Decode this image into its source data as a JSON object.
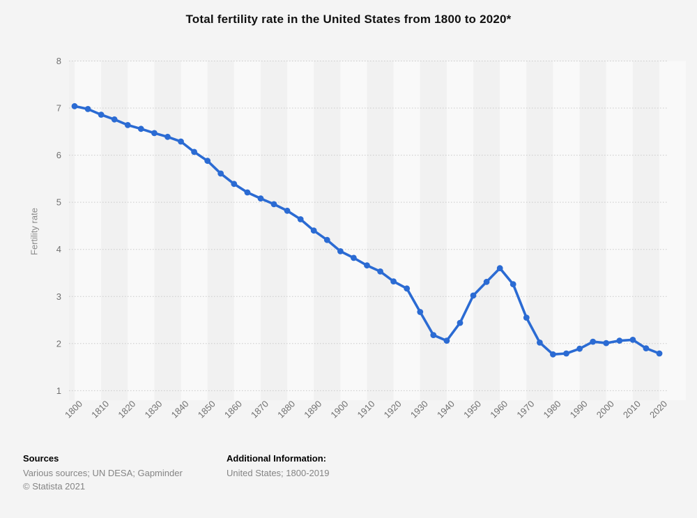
{
  "title": "Total fertility rate in the United States from 1800 to 2020*",
  "colors": {
    "background": "#f4f4f4",
    "band_light": "#f9f9f9",
    "band_dark": "#f1f1f1",
    "gridline": "#c9c9c9",
    "line": "#2b6bd3",
    "axis_text": "#707070",
    "title_text": "#111111"
  },
  "chart_data": {
    "type": "line",
    "title": "Total fertility rate in the United States from 1800 to 2020*",
    "xlabel": "",
    "ylabel": "Fertility rate",
    "ylim": [
      1,
      8
    ],
    "yticks": [
      1,
      2,
      3,
      4,
      5,
      6,
      7,
      8
    ],
    "xticks": [
      1800,
      1810,
      1820,
      1830,
      1840,
      1850,
      1860,
      1870,
      1880,
      1890,
      1900,
      1910,
      1920,
      1930,
      1940,
      1950,
      1960,
      1970,
      1980,
      1990,
      2000,
      2010,
      2020
    ],
    "grid": "horizontal-dotted",
    "legend": "none",
    "marker": "circle",
    "x": [
      1800,
      1805,
      1810,
      1815,
      1820,
      1825,
      1830,
      1835,
      1840,
      1845,
      1850,
      1855,
      1860,
      1865,
      1870,
      1875,
      1880,
      1885,
      1890,
      1895,
      1900,
      1905,
      1910,
      1915,
      1920,
      1925,
      1930,
      1935,
      1940,
      1945,
      1950,
      1955,
      1960,
      1965,
      1970,
      1975,
      1980,
      1985,
      1990,
      1995,
      2000,
      2005,
      2010,
      2015,
      2020
    ],
    "values": [
      7.04,
      6.98,
      6.86,
      6.76,
      6.64,
      6.56,
      6.47,
      6.39,
      6.29,
      6.07,
      5.88,
      5.61,
      5.39,
      5.21,
      5.08,
      4.96,
      4.82,
      4.64,
      4.4,
      4.2,
      3.96,
      3.82,
      3.66,
      3.53,
      3.32,
      3.17,
      2.67,
      2.18,
      2.06,
      2.44,
      3.02,
      3.31,
      3.6,
      3.26,
      2.55,
      2.02,
      1.77,
      1.79,
      1.89,
      2.04,
      2.01,
      2.06,
      2.08,
      1.9,
      1.79
    ]
  },
  "footer": {
    "sources_heading": "Sources",
    "sources_line": "Various sources; UN DESA; Gapminder",
    "copyright": "© Statista 2021",
    "additional_heading": "Additional Information:",
    "additional_line": "United States; 1800-2019"
  }
}
